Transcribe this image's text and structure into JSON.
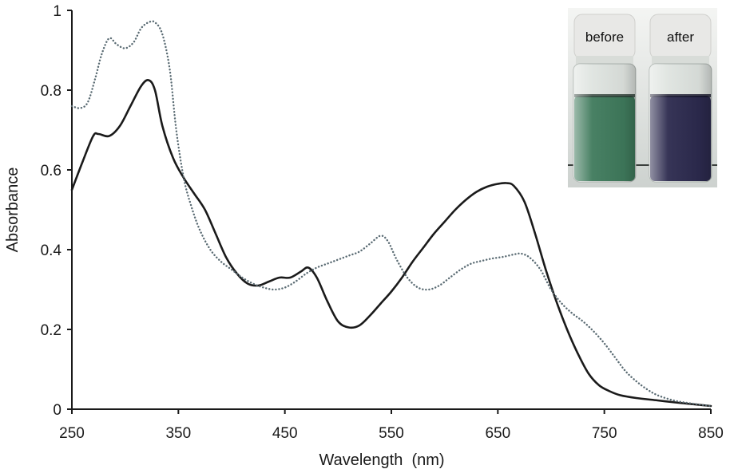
{
  "chart_data": {
    "type": "line",
    "xlabel": "Wavelength  (nm)",
    "ylabel": "Absorbance",
    "xlim": [
      250,
      850
    ],
    "ylim": [
      0,
      1
    ],
    "x_ticks": [
      "250",
      "350",
      "450",
      "550",
      "650",
      "750",
      "850"
    ],
    "y_ticks": [
      "0",
      "0.2",
      "0.4",
      "0.6",
      "0.8",
      "1"
    ],
    "grid": false,
    "series": [
      {
        "style": "solid",
        "color": "#1a1a1a",
        "points": [
          [
            250,
            0.55
          ],
          [
            260,
            0.62
          ],
          [
            270,
            0.685
          ],
          [
            275,
            0.69
          ],
          [
            285,
            0.685
          ],
          [
            295,
            0.71
          ],
          [
            305,
            0.76
          ],
          [
            315,
            0.81
          ],
          [
            322,
            0.825
          ],
          [
            328,
            0.8
          ],
          [
            335,
            0.71
          ],
          [
            345,
            0.63
          ],
          [
            355,
            0.58
          ],
          [
            365,
            0.54
          ],
          [
            375,
            0.5
          ],
          [
            385,
            0.44
          ],
          [
            395,
            0.38
          ],
          [
            405,
            0.34
          ],
          [
            415,
            0.315
          ],
          [
            425,
            0.31
          ],
          [
            435,
            0.32
          ],
          [
            445,
            0.33
          ],
          [
            455,
            0.33
          ],
          [
            465,
            0.345
          ],
          [
            472,
            0.355
          ],
          [
            480,
            0.33
          ],
          [
            490,
            0.27
          ],
          [
            500,
            0.22
          ],
          [
            510,
            0.205
          ],
          [
            520,
            0.21
          ],
          [
            530,
            0.235
          ],
          [
            540,
            0.265
          ],
          [
            550,
            0.295
          ],
          [
            560,
            0.33
          ],
          [
            570,
            0.37
          ],
          [
            580,
            0.405
          ],
          [
            590,
            0.44
          ],
          [
            600,
            0.47
          ],
          [
            610,
            0.5
          ],
          [
            620,
            0.525
          ],
          [
            630,
            0.545
          ],
          [
            640,
            0.558
          ],
          [
            650,
            0.565
          ],
          [
            658,
            0.567
          ],
          [
            665,
            0.56
          ],
          [
            675,
            0.52
          ],
          [
            685,
            0.44
          ],
          [
            695,
            0.35
          ],
          [
            705,
            0.27
          ],
          [
            715,
            0.2
          ],
          [
            725,
            0.14
          ],
          [
            735,
            0.09
          ],
          [
            745,
            0.06
          ],
          [
            755,
            0.045
          ],
          [
            765,
            0.035
          ],
          [
            780,
            0.028
          ],
          [
            800,
            0.022
          ],
          [
            820,
            0.016
          ],
          [
            835,
            0.012
          ],
          [
            850,
            0.008
          ]
        ]
      },
      {
        "style": "dotted",
        "color": "#5a6b73",
        "points": [
          [
            250,
            0.76
          ],
          [
            258,
            0.755
          ],
          [
            265,
            0.77
          ],
          [
            272,
            0.83
          ],
          [
            278,
            0.89
          ],
          [
            285,
            0.93
          ],
          [
            292,
            0.915
          ],
          [
            300,
            0.905
          ],
          [
            308,
            0.92
          ],
          [
            315,
            0.955
          ],
          [
            322,
            0.97
          ],
          [
            328,
            0.97
          ],
          [
            335,
            0.94
          ],
          [
            342,
            0.85
          ],
          [
            348,
            0.7
          ],
          [
            355,
            0.58
          ],
          [
            362,
            0.51
          ],
          [
            370,
            0.45
          ],
          [
            380,
            0.4
          ],
          [
            390,
            0.37
          ],
          [
            400,
            0.35
          ],
          [
            410,
            0.33
          ],
          [
            420,
            0.315
          ],
          [
            430,
            0.305
          ],
          [
            440,
            0.3
          ],
          [
            450,
            0.305
          ],
          [
            460,
            0.32
          ],
          [
            470,
            0.34
          ],
          [
            480,
            0.355
          ],
          [
            490,
            0.365
          ],
          [
            500,
            0.375
          ],
          [
            510,
            0.385
          ],
          [
            520,
            0.395
          ],
          [
            530,
            0.415
          ],
          [
            540,
            0.435
          ],
          [
            547,
            0.42
          ],
          [
            555,
            0.375
          ],
          [
            565,
            0.33
          ],
          [
            575,
            0.305
          ],
          [
            585,
            0.3
          ],
          [
            595,
            0.31
          ],
          [
            605,
            0.33
          ],
          [
            615,
            0.35
          ],
          [
            625,
            0.365
          ],
          [
            635,
            0.372
          ],
          [
            645,
            0.378
          ],
          [
            655,
            0.382
          ],
          [
            665,
            0.388
          ],
          [
            672,
            0.39
          ],
          [
            680,
            0.38
          ],
          [
            690,
            0.35
          ],
          [
            700,
            0.3
          ],
          [
            710,
            0.265
          ],
          [
            720,
            0.24
          ],
          [
            730,
            0.22
          ],
          [
            740,
            0.195
          ],
          [
            750,
            0.165
          ],
          [
            760,
            0.13
          ],
          [
            770,
            0.095
          ],
          [
            780,
            0.07
          ],
          [
            790,
            0.05
          ],
          [
            800,
            0.035
          ],
          [
            815,
            0.022
          ],
          [
            830,
            0.015
          ],
          [
            850,
            0.008
          ]
        ]
      }
    ],
    "inset": {
      "vials": [
        {
          "label": "before",
          "liquid_color": "#3f7a5c",
          "label_bg": "#e8e8e6"
        },
        {
          "label": "after",
          "liquid_color": "#2c2a4e",
          "label_bg": "#e8e8e6"
        }
      ]
    }
  }
}
